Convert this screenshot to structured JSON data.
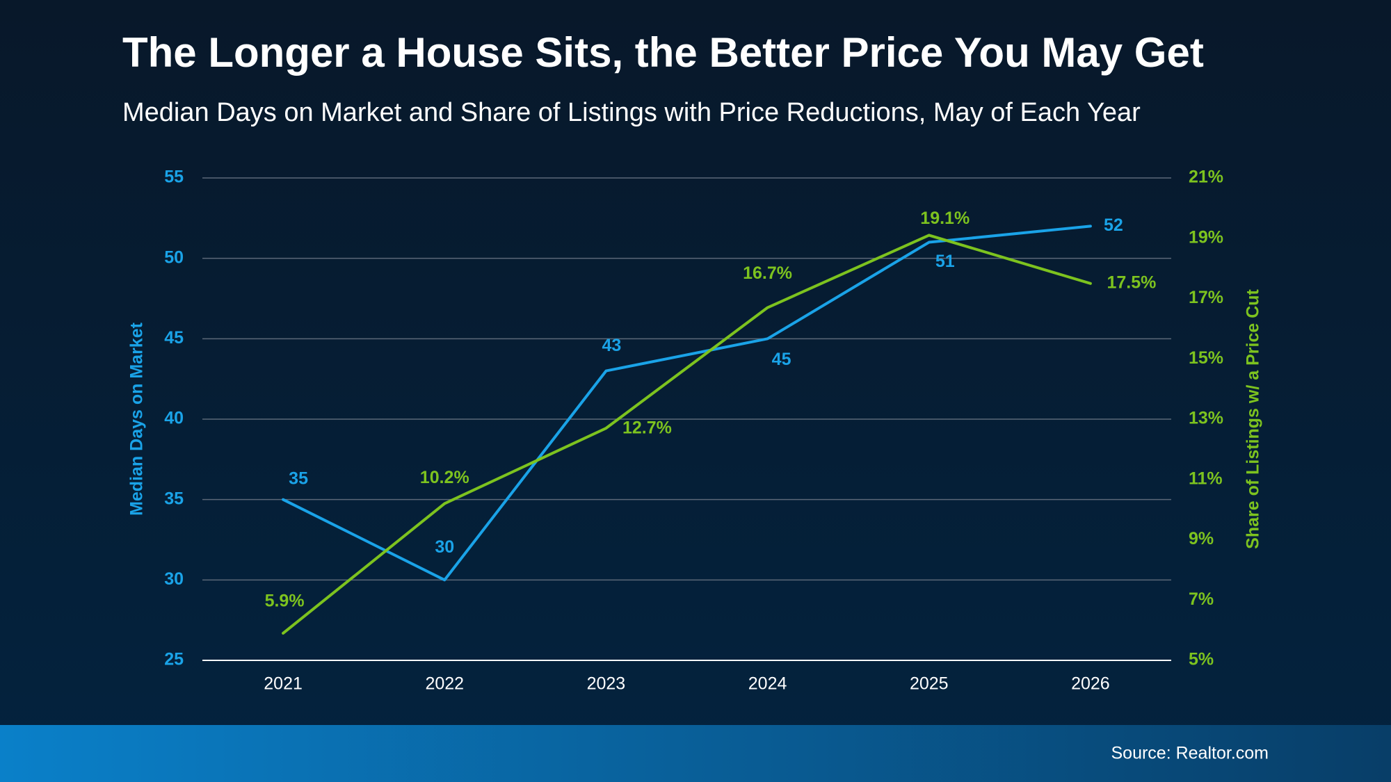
{
  "chart_data": {
    "type": "line",
    "title": "The Longer a House Sits, the Better Price You May Get",
    "subtitle": "Median Days on Market and Share of Listings with Price Reductions, May of Each Year",
    "source": "Source: Realtor.com",
    "categories": [
      "2021",
      "2022",
      "2023",
      "2024",
      "2025",
      "2026"
    ],
    "ylabel": "Median Days on Market",
    "y2label": "Share of Listings w/ a Price Cut",
    "ylim": [
      25,
      55
    ],
    "yticks": [
      25,
      30,
      35,
      40,
      45,
      50,
      55
    ],
    "y2lim": [
      5,
      21
    ],
    "y2ticks": [
      {
        "value": 5,
        "label": "5%"
      },
      {
        "value": 7,
        "label": "7%"
      },
      {
        "value": 9,
        "label": "9%"
      },
      {
        "value": 11,
        "label": "11%"
      },
      {
        "value": 13,
        "label": "13%"
      },
      {
        "value": 15,
        "label": "15%"
      },
      {
        "value": 17,
        "label": "17%"
      },
      {
        "value": 19,
        "label": "19%"
      },
      {
        "value": 21,
        "label": "21%"
      }
    ],
    "grid": true,
    "series": [
      {
        "color": "#1aa3e8",
        "values": [
          35,
          30,
          43,
          45,
          51,
          52
        ]
      },
      {
        "color": "#7dc31f",
        "axis": "y2",
        "values": [
          5.9,
          10.2,
          12.7,
          16.7,
          19.1,
          17.5
        ],
        "value_labels": [
          "5.9%",
          "10.2%",
          "12.7%",
          "16.7%",
          "19.1%",
          "17.5%"
        ]
      }
    ]
  }
}
